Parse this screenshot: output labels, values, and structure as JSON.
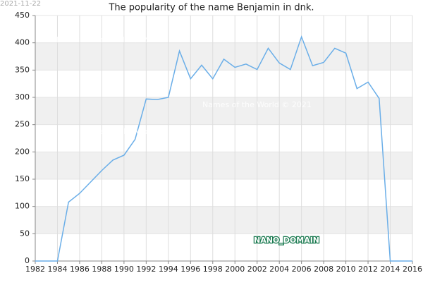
{
  "date": "2021-11-22",
  "watermarks": [
    "Names of the World © 2021",
    "Names of the World © 2021",
    "Names of the World © 2021"
  ],
  "badge": "NANO_DOMAIN",
  "chart_data": {
    "type": "line",
    "title": "The popularity of the name Benjamin in dnk.",
    "x": [
      1982,
      1983,
      1984,
      1985,
      1986,
      1987,
      1988,
      1989,
      1990,
      1991,
      1992,
      1993,
      1994,
      1995,
      1996,
      1997,
      1998,
      1999,
      2000,
      2001,
      2002,
      2003,
      2004,
      2005,
      2006,
      2007,
      2008,
      2009,
      2010,
      2011,
      2012,
      2013,
      2014,
      2015,
      2016
    ],
    "series": [
      {
        "name": "Benjamin",
        "color": "#6aaee8",
        "values": [
          0,
          0,
          0,
          108,
          124,
          145,
          166,
          185,
          194,
          223,
          297,
          296,
          300,
          385,
          334,
          359,
          334,
          370,
          355,
          361,
          351,
          390,
          363,
          351,
          411,
          358,
          364,
          390,
          381,
          316,
          328,
          298,
          0,
          0,
          0
        ]
      }
    ],
    "xlim": [
      1982,
      2016
    ],
    "xticks": [
      1982,
      1984,
      1986,
      1988,
      1990,
      1992,
      1994,
      1996,
      1998,
      2000,
      2002,
      2004,
      2006,
      2008,
      2010,
      2012,
      2014,
      2016
    ],
    "ylim": [
      0,
      450
    ],
    "yticks": [
      0,
      50,
      100,
      150,
      200,
      250,
      300,
      350,
      400,
      450
    ],
    "grid": true
  }
}
